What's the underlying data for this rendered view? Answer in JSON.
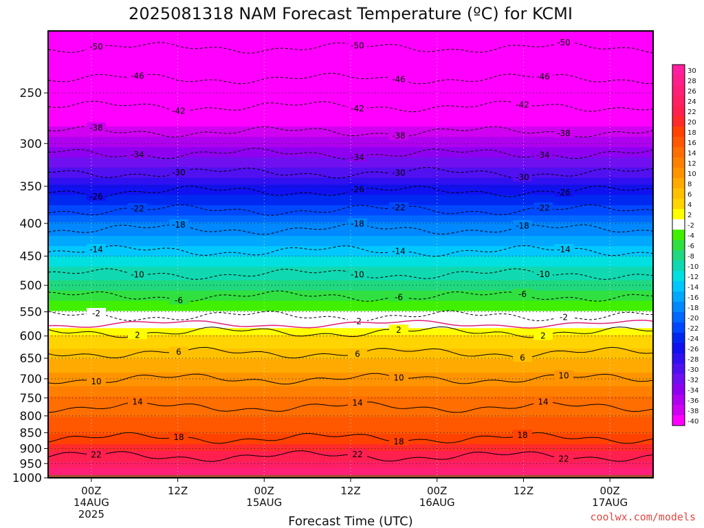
{
  "chart_data": {
    "type": "heatmap",
    "title": "2025081318 NAM Forecast Temperature (ºC) for KCMI",
    "xlabel": "Forecast Time (UTC)",
    "ylabel": "",
    "credit": "coolwx.com/models",
    "y_scale": "log",
    "y_inverted": true,
    "ylim": [
      1000,
      200
    ],
    "y_ticks": [
      250,
      300,
      350,
      400,
      450,
      500,
      550,
      600,
      650,
      700,
      750,
      800,
      850,
      900,
      950,
      1000
    ],
    "x_ticks": [
      {
        "label": "00Z",
        "label2": "14AUG",
        "label3": "2025",
        "hour": 6
      },
      {
        "label": "12Z",
        "label2": "",
        "label3": "",
        "hour": 18
      },
      {
        "label": "00Z",
        "label2": "15AUG",
        "label3": "",
        "hour": 30
      },
      {
        "label": "12Z",
        "label2": "",
        "label3": "",
        "hour": 42
      },
      {
        "label": "00Z",
        "label2": "16AUG",
        "label3": "",
        "hour": 54
      },
      {
        "label": "12Z",
        "label2": "",
        "label3": "",
        "hour": 66
      },
      {
        "label": "00Z",
        "label2": "17AUG",
        "label3": "",
        "hour": 78
      }
    ],
    "xlim": [
      0,
      84
    ],
    "ground_level": 990,
    "colorbar": {
      "levels": [
        30,
        28,
        26,
        24,
        22,
        20,
        18,
        16,
        14,
        12,
        10,
        8,
        6,
        4,
        2,
        -2,
        -4,
        -6,
        -8,
        -10,
        -12,
        -14,
        -16,
        -18,
        -20,
        -22,
        -24,
        -26,
        -28,
        -30,
        -32,
        -34,
        -36,
        -38,
        -40
      ],
      "colors": [
        "#ff1fa0",
        "#ff1f8c",
        "#ff1f78",
        "#ff1f64",
        "#ff2050",
        "#ff2a2a",
        "#ff4200",
        "#ff5800",
        "#ff6e00",
        "#ff8000",
        "#ff9400",
        "#ffaa00",
        "#ffc000",
        "#ffd400",
        "#ffff00",
        "#ffffff",
        "#40f000",
        "#30e040",
        "#20d880",
        "#10d8b0",
        "#00e0e0",
        "#00c8ff",
        "#00a8ff",
        "#0088ff",
        "#0068ff",
        "#0048ff",
        "#0028f0",
        "#1010f0",
        "#3010f0",
        "#5010f0",
        "#7010f0",
        "#9000f0",
        "#b000f0",
        "#d000f0",
        "#ff00ff"
      ]
    },
    "contour_labels": [
      -50,
      -46,
      -42,
      -38,
      -34,
      -30,
      -26,
      -22,
      -18,
      -14,
      -10,
      -6,
      -2,
      2,
      6,
      10,
      14,
      18,
      22
    ],
    "profile_temps": [
      {
        "p": 200,
        "t": -52
      },
      {
        "p": 250,
        "t": -44
      },
      {
        "p": 300,
        "t": -36
      },
      {
        "p": 350,
        "t": -27
      },
      {
        "p": 400,
        "t": -19
      },
      {
        "p": 450,
        "t": -13
      },
      {
        "p": 500,
        "t": -8
      },
      {
        "p": 550,
        "t": -3
      },
      {
        "p": 600,
        "t": 3
      },
      {
        "p": 650,
        "t": 7
      },
      {
        "p": 700,
        "t": 10
      },
      {
        "p": 750,
        "t": 13
      },
      {
        "p": 800,
        "t": 15
      },
      {
        "p": 850,
        "t": 17
      },
      {
        "p": 900,
        "t": 20
      },
      {
        "p": 950,
        "t": 24
      },
      {
        "p": 1000,
        "t": 27
      }
    ]
  }
}
